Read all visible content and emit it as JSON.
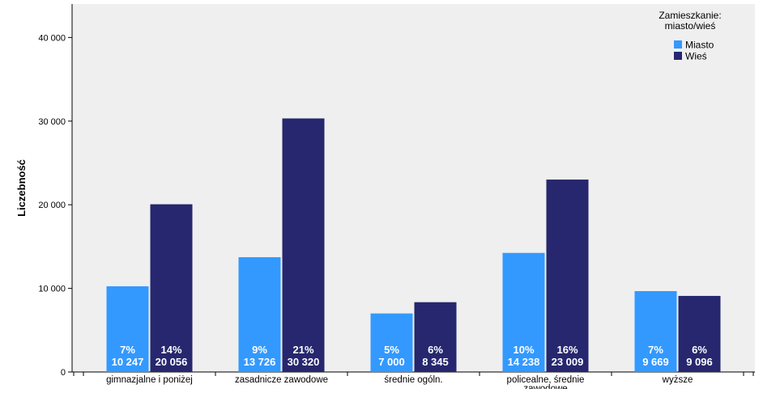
{
  "chart_data": {
    "type": "bar",
    "title": "",
    "xlabel": "",
    "ylabel": "Liczebność",
    "ylim": [
      0,
      44000
    ],
    "yticks": [
      {
        "value": 0,
        "label": "0"
      },
      {
        "value": 10000,
        "label": "10 000"
      },
      {
        "value": 20000,
        "label": "20 000"
      },
      {
        "value": 30000,
        "label": "30 000"
      },
      {
        "value": 40000,
        "label": "40 000"
      }
    ],
    "categories": [
      "gimnazjalne i poniżej",
      "zasadnicze zawodowe",
      "średnie ogóln.",
      "policealne, średnie zawodowe",
      "wyższe"
    ],
    "category_lines": [
      [
        "gimnazjalne i poniżej"
      ],
      [
        "zasadnicze zawodowe"
      ],
      [
        "średnie ogóln."
      ],
      [
        "policealne, średnie",
        "zawodowe"
      ],
      [
        "wyższe"
      ]
    ],
    "series": [
      {
        "name": "Miasto",
        "color": "#3399ff",
        "values": [
          10247,
          13726,
          7000,
          14238,
          9669
        ],
        "value_labels": [
          "10 247",
          "13 726",
          "7 000",
          "14 238",
          "9 669"
        ],
        "percent_labels": [
          "7%",
          "9%",
          "5%",
          "10%",
          "7%"
        ]
      },
      {
        "name": "Wieś",
        "color": "#26276e",
        "values": [
          20056,
          30320,
          8345,
          23009,
          9096
        ],
        "value_labels": [
          "20 056",
          "30 320",
          "8 345",
          "23 009",
          "9 096"
        ],
        "percent_labels": [
          "14%",
          "21%",
          "6%",
          "16%",
          "6%"
        ]
      }
    ],
    "legend": {
      "title_lines": [
        "Zamieszkanie:",
        "miasto/wieś"
      ],
      "position": "top-right"
    },
    "plot_background": "#efefef"
  }
}
